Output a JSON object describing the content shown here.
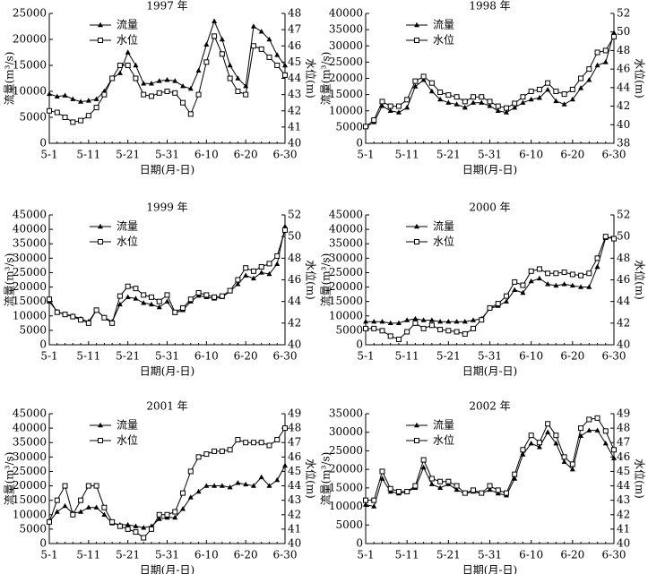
{
  "chart_data": [
    {
      "type": "line",
      "title": "1997 年",
      "x_label": "日期(月-日)",
      "y_label": "流量(m³/s)",
      "y2_label": "水位(m)",
      "categories": [
        "5-1",
        null,
        null,
        null,
        null,
        "5-11",
        null,
        null,
        null,
        null,
        "5-21",
        null,
        null,
        null,
        null,
        "5-31",
        null,
        null,
        null,
        null,
        "6-10",
        null,
        null,
        null,
        null,
        "6-20",
        null,
        null,
        null,
        null,
        "6-30"
      ],
      "series": [
        {
          "name": "流量",
          "color": "#000000",
          "marker": "triangle",
          "values": [
            9500,
            9000,
            9200,
            8500,
            8000,
            8200,
            8500,
            10000,
            12500,
            13500,
            17500,
            15000,
            11500,
            11500,
            12000,
            12200,
            12000,
            11000,
            10500,
            14000,
            19000,
            23500,
            20000,
            15000,
            12500,
            11000,
            22500,
            21500,
            20000,
            17000,
            15000
          ]
        },
        {
          "name": "水位",
          "color": "#000000",
          "marker": "square",
          "axis": "y2",
          "values": [
            42.0,
            41.9,
            41.6,
            41.3,
            41.4,
            41.7,
            42.2,
            43.0,
            44.0,
            44.8,
            44.8,
            44.0,
            43.0,
            42.9,
            43.1,
            43.2,
            43.1,
            42.5,
            41.8,
            43.0,
            45.0,
            46.6,
            45.5,
            44.0,
            43.2,
            43.0,
            46.0,
            45.8,
            45.3,
            44.8,
            44.2
          ]
        }
      ],
      "ylim": [
        0,
        25000
      ],
      "yticks": [
        0,
        5000,
        10000,
        15000,
        20000,
        25000
      ],
      "y2lim": [
        40,
        48
      ],
      "y2ticks": [
        40,
        41,
        42,
        43,
        44,
        45,
        46,
        47,
        48
      ]
    },
    {
      "type": "line",
      "title": "1998 年",
      "x_label": "日期(月-日)",
      "y_label": "流量(m³/s)",
      "y2_label": "水位(m)",
      "categories": [
        "5-1",
        null,
        null,
        null,
        null,
        "5-11",
        null,
        null,
        null,
        null,
        "5-21",
        null,
        null,
        null,
        null,
        "5-31",
        null,
        null,
        null,
        null,
        "6-10",
        null,
        null,
        null,
        null,
        "6-20",
        null,
        null,
        null,
        null,
        "6-30"
      ],
      "series": [
        {
          "name": "流量",
          "color": "#000000",
          "marker": "triangle",
          "values": [
            5000,
            6500,
            11500,
            10000,
            9500,
            11000,
            17500,
            19500,
            16000,
            13500,
            12500,
            12000,
            11000,
            12500,
            12500,
            11500,
            10000,
            9500,
            11000,
            12500,
            13500,
            14000,
            16500,
            13000,
            12000,
            13500,
            17000,
            19500,
            24000,
            25000,
            34000
          ]
        },
        {
          "name": "水位",
          "color": "#000000",
          "marker": "square",
          "axis": "y2",
          "values": [
            39.8,
            40.5,
            42.5,
            42.0,
            42.0,
            42.7,
            44.7,
            45.2,
            44.5,
            43.5,
            43.2,
            43.0,
            42.5,
            43.0,
            43.0,
            42.5,
            42.0,
            41.8,
            42.3,
            43.0,
            43.6,
            43.8,
            44.5,
            43.6,
            43.3,
            43.8,
            45.0,
            46.0,
            47.8,
            48.0,
            49.5
          ]
        }
      ],
      "ylim": [
        0,
        40000
      ],
      "yticks": [
        0,
        5000,
        10000,
        15000,
        20000,
        25000,
        30000,
        35000,
        40000
      ],
      "y2lim": [
        38,
        52
      ],
      "y2ticks": [
        38,
        40,
        42,
        44,
        46,
        48,
        50,
        52
      ]
    },
    {
      "type": "line",
      "title": "1999 年",
      "x_label": "日期(月-日)",
      "y_label": "流量(m³/s)",
      "y2_label": "水位(m)",
      "categories": [
        "5-1",
        null,
        null,
        null,
        null,
        "5-11",
        null,
        null,
        null,
        null,
        "5-21",
        null,
        null,
        null,
        null,
        "5-31",
        null,
        null,
        null,
        null,
        "6-10",
        null,
        null,
        null,
        null,
        "6-20",
        null,
        null,
        null,
        null,
        "6-30"
      ],
      "series": [
        {
          "name": "流量",
          "color": "#000000",
          "marker": "triangle",
          "values": [
            15000,
            11500,
            10500,
            10000,
            9000,
            8000,
            12000,
            9500,
            8000,
            14000,
            16500,
            16000,
            14500,
            14000,
            13000,
            15000,
            11000,
            12000,
            15000,
            17000,
            16500,
            16000,
            16500,
            18500,
            21000,
            24000,
            23000,
            25000,
            24500,
            28000,
            41000
          ]
        },
        {
          "name": "水位",
          "color": "#000000",
          "marker": "square",
          "axis": "y2",
          "values": [
            44.2,
            43.0,
            42.8,
            42.6,
            42.3,
            42.0,
            43.2,
            42.5,
            42.0,
            44.5,
            45.4,
            45.2,
            44.6,
            44.4,
            44.0,
            44.6,
            43.0,
            43.4,
            44.2,
            44.8,
            44.6,
            44.4,
            44.5,
            45.0,
            46.0,
            47.1,
            46.8,
            47.2,
            47.5,
            48.2,
            50.6
          ]
        }
      ],
      "ylim": [
        0,
        45000
      ],
      "yticks": [
        0,
        5000,
        10000,
        15000,
        20000,
        25000,
        30000,
        35000,
        40000,
        45000
      ],
      "y2lim": [
        40,
        52
      ],
      "y2ticks": [
        40,
        42,
        44,
        46,
        48,
        50,
        52
      ]
    },
    {
      "type": "line",
      "title": "2000 年",
      "x_label": "日期(月-日)",
      "y_label": "流量(m³/s)",
      "y2_label": "水位(m)",
      "categories": [
        "5-1",
        null,
        null,
        null,
        null,
        "5-11",
        null,
        null,
        null,
        null,
        "5-21",
        null,
        null,
        null,
        null,
        "5-31",
        null,
        null,
        null,
        null,
        "6-10",
        null,
        null,
        null,
        null,
        "6-20",
        null,
        null,
        null,
        null,
        "6-30"
      ],
      "series": [
        {
          "name": "流量",
          "color": "#000000",
          "marker": "triangle",
          "values": [
            8000,
            8000,
            8000,
            7500,
            7500,
            8500,
            9000,
            8500,
            8500,
            8000,
            8000,
            8000,
            8000,
            8500,
            9000,
            12500,
            13500,
            15000,
            19000,
            18000,
            22000,
            23000,
            21000,
            20500,
            21000,
            20500,
            20000,
            20000,
            27000,
            37000,
            37000
          ]
        },
        {
          "name": "水位",
          "color": "#000000",
          "marker": "square",
          "axis": "y2",
          "values": [
            41.5,
            41.5,
            41.3,
            40.8,
            40.5,
            41.2,
            42.0,
            41.5,
            41.8,
            41.4,
            41.3,
            41.2,
            41.0,
            41.5,
            42.3,
            43.4,
            43.8,
            44.5,
            45.8,
            45.5,
            46.8,
            47.0,
            46.6,
            46.6,
            46.7,
            46.5,
            46.4,
            46.6,
            48.0,
            50.0,
            49.8
          ]
        }
      ],
      "ylim": [
        0,
        45000
      ],
      "yticks": [
        0,
        5000,
        10000,
        15000,
        20000,
        25000,
        30000,
        35000,
        40000,
        45000
      ],
      "y2lim": [
        40,
        52
      ],
      "y2ticks": [
        40,
        42,
        44,
        46,
        48,
        50,
        52
      ]
    },
    {
      "type": "line",
      "title": "2001 年",
      "x_label": "日期(月-日)",
      "y_label": "流量(m³/s)",
      "y2_label": "水位(m)",
      "categories": [
        "5-1",
        null,
        null,
        null,
        null,
        "5-11",
        null,
        null,
        null,
        null,
        "5-21",
        null,
        null,
        null,
        null,
        "5-31",
        null,
        null,
        null,
        null,
        "6-10",
        null,
        null,
        null,
        null,
        "6-20",
        null,
        null,
        null,
        null,
        "6-30"
      ],
      "series": [
        {
          "name": "流量",
          "color": "#000000",
          "marker": "triangle",
          "values": [
            7500,
            11000,
            13000,
            10500,
            11000,
            12500,
            12500,
            10000,
            7000,
            6500,
            6500,
            6000,
            5500,
            6000,
            8500,
            9000,
            9000,
            12000,
            16000,
            18000,
            20000,
            20000,
            20000,
            19500,
            21000,
            20500,
            20000,
            23000,
            20000,
            22000,
            27000
          ]
        },
        {
          "name": "水位",
          "color": "#000000",
          "marker": "square",
          "axis": "y2",
          "values": [
            41.5,
            43.0,
            44.0,
            42.0,
            43.0,
            44.0,
            44.0,
            42.5,
            41.5,
            41.2,
            41.0,
            40.8,
            40.4,
            41.0,
            42.0,
            42.0,
            42.2,
            43.5,
            45.0,
            46.0,
            46.2,
            46.4,
            46.4,
            46.5,
            47.2,
            47.0,
            47.0,
            47.0,
            46.8,
            47.2,
            48.0
          ]
        }
      ],
      "ylim": [
        0,
        45000
      ],
      "yticks": [
        0,
        5000,
        10000,
        15000,
        20000,
        25000,
        30000,
        35000,
        40000,
        45000
      ],
      "y2lim": [
        40,
        49
      ],
      "y2ticks": [
        40,
        41,
        42,
        43,
        44,
        45,
        46,
        47,
        48,
        49
      ]
    },
    {
      "type": "line",
      "title": "2002 年",
      "x_label": "日期(月-日)",
      "y_label": "流量(m³/s)",
      "y2_label": "水位(m)",
      "categories": [
        "5-1",
        null,
        null,
        null,
        null,
        "5-11",
        null,
        null,
        null,
        null,
        "5-21",
        null,
        null,
        null,
        null,
        "5-31",
        null,
        null,
        null,
        null,
        "6-10",
        null,
        null,
        null,
        null,
        "6-20",
        null,
        null,
        null,
        null,
        "6-30"
      ],
      "series": [
        {
          "name": "流量",
          "color": "#000000",
          "marker": "triangle",
          "values": [
            10500,
            10000,
            17500,
            14000,
            13500,
            14000,
            15000,
            20500,
            16000,
            15000,
            16000,
            14500,
            13500,
            14000,
            13500,
            14500,
            13500,
            13000,
            17500,
            24000,
            27000,
            26000,
            30000,
            27000,
            22000,
            20000,
            29000,
            30500,
            30500,
            27000,
            23000
          ]
        },
        {
          "name": "水位",
          "color": "#000000",
          "marker": "square",
          "axis": "y2",
          "values": [
            43.0,
            43.0,
            45.0,
            43.8,
            43.6,
            43.6,
            44.0,
            45.8,
            44.5,
            44.3,
            44.3,
            44.0,
            43.5,
            43.7,
            43.5,
            44.0,
            43.7,
            43.5,
            44.8,
            46.5,
            47.5,
            47.0,
            48.3,
            47.5,
            46.0,
            45.5,
            48.0,
            48.6,
            48.7,
            47.8,
            46.5
          ]
        }
      ],
      "ylim": [
        0,
        35000
      ],
      "yticks": [
        0,
        5000,
        10000,
        15000,
        20000,
        25000,
        30000,
        35000
      ],
      "y2lim": [
        40,
        49
      ],
      "y2ticks": [
        40,
        41,
        42,
        43,
        44,
        45,
        46,
        47,
        48,
        49
      ]
    }
  ]
}
